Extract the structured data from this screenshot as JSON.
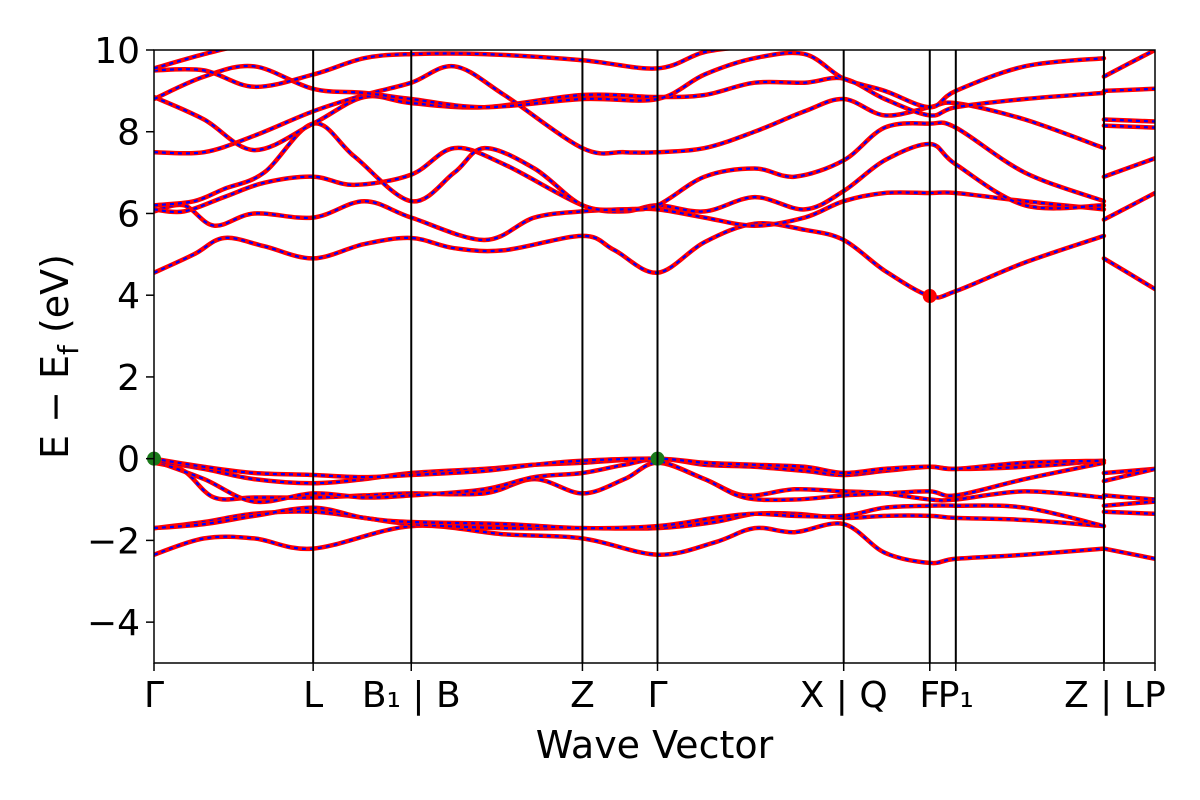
{
  "chart_data": {
    "type": "line",
    "title": "",
    "xlabel": "Wave Vector",
    "ylabel": "E − Ef",
    "ylabel_main": "E − E",
    "ylabel_sub": "f",
    "ylabel_unit": " (eV)",
    "ylim": [
      -5,
      10
    ],
    "yticks": [
      -4,
      -2,
      0,
      2,
      4,
      6,
      8,
      10
    ],
    "ytick_labels": [
      "−4",
      "−2",
      "0",
      "2",
      "4",
      "6",
      "8",
      "10"
    ],
    "xlim": [
      0,
      1
    ],
    "kpoints": [
      {
        "x": 0.0,
        "label": "Γ"
      },
      {
        "x": 0.159,
        "label": "L"
      },
      {
        "x": 0.257,
        "label": "B₁ | B"
      },
      {
        "x": 0.428,
        "label": "Z"
      },
      {
        "x": 0.503,
        "label": "Γ"
      },
      {
        "x": 0.689,
        "label": "X | Q"
      },
      {
        "x": 0.775,
        "label": "F"
      },
      {
        "x": 0.801,
        "label": "P₁"
      },
      {
        "x": 0.949,
        "label": "Z | L"
      },
      {
        "x": 1.0,
        "label": "P"
      }
    ],
    "grid": false,
    "series_colors": {
      "line_a": "#ff0000",
      "line_b": "#0000ff"
    },
    "series_style": "red solid overlaid with blue dashed",
    "markers": [
      {
        "name": "vbm",
        "x": 0.0,
        "y": 0.0,
        "color": "#1a7a1a"
      },
      {
        "name": "vbm",
        "x": 0.503,
        "y": 0.0,
        "color": "#1a7a1a"
      },
      {
        "name": "cbm",
        "x": 0.775,
        "y": 3.98,
        "color": "#ff0000"
      }
    ],
    "bands": [
      [
        [
          0,
          -2.35
        ],
        [
          0.05,
          -1.95
        ],
        [
          0.1,
          -1.95
        ],
        [
          0.159,
          -2.2
        ],
        [
          0.257,
          -1.65
        ],
        [
          0.35,
          -1.85
        ],
        [
          0.428,
          -1.95
        ],
        [
          0.503,
          -2.35
        ],
        [
          0.56,
          -2.05
        ],
        [
          0.6,
          -1.7
        ],
        [
          0.64,
          -1.8
        ],
        [
          0.689,
          -1.6
        ],
        [
          0.73,
          -2.3
        ],
        [
          0.775,
          -2.55
        ],
        [
          0.801,
          -2.45
        ],
        [
          0.87,
          -2.35
        ],
        [
          0.949,
          -2.2
        ]
      ],
      [
        [
          0.949,
          -2.2
        ],
        [
          1.0,
          -2.45
        ]
      ],
      [
        [
          0,
          -1.7
        ],
        [
          0.05,
          -1.55
        ],
        [
          0.1,
          -1.35
        ],
        [
          0.159,
          -1.3
        ],
        [
          0.21,
          -1.45
        ],
        [
          0.257,
          -1.6
        ],
        [
          0.35,
          -1.7
        ],
        [
          0.428,
          -1.7
        ],
        [
          0.503,
          -1.7
        ],
        [
          0.56,
          -1.55
        ],
        [
          0.6,
          -1.35
        ],
        [
          0.64,
          -1.35
        ],
        [
          0.689,
          -1.45
        ],
        [
          0.73,
          -1.4
        ],
        [
          0.775,
          -1.4
        ],
        [
          0.801,
          -1.45
        ],
        [
          0.87,
          -1.5
        ],
        [
          0.949,
          -1.65
        ]
      ],
      [
        [
          0,
          -1.7
        ],
        [
          0.05,
          -1.6
        ],
        [
          0.1,
          -1.4
        ],
        [
          0.159,
          -1.2
        ],
        [
          0.21,
          -1.45
        ],
        [
          0.257,
          -1.55
        ],
        [
          0.35,
          -1.6
        ],
        [
          0.428,
          -1.7
        ],
        [
          0.503,
          -1.65
        ],
        [
          0.56,
          -1.45
        ],
        [
          0.6,
          -1.35
        ],
        [
          0.64,
          -1.4
        ],
        [
          0.689,
          -1.4
        ],
        [
          0.73,
          -1.2
        ],
        [
          0.775,
          -1.15
        ],
        [
          0.801,
          -1.15
        ],
        [
          0.87,
          -1.2
        ],
        [
          0.949,
          -1.65
        ]
      ],
      [
        [
          0,
          -0.1
        ],
        [
          0.03,
          -0.3
        ],
        [
          0.06,
          -0.95
        ],
        [
          0.1,
          -0.95
        ],
        [
          0.159,
          -0.95
        ],
        [
          0.21,
          -0.9
        ],
        [
          0.257,
          -0.85
        ],
        [
          0.33,
          -0.85
        ],
        [
          0.38,
          -0.5
        ],
        [
          0.428,
          -0.85
        ],
        [
          0.47,
          -0.5
        ],
        [
          0.503,
          -0.1
        ],
        [
          0.55,
          -0.5
        ],
        [
          0.59,
          -0.9
        ],
        [
          0.64,
          -0.75
        ],
        [
          0.689,
          -0.8
        ],
        [
          0.73,
          -0.85
        ],
        [
          0.775,
          -1.0
        ],
        [
          0.801,
          -1.0
        ],
        [
          0.87,
          -0.8
        ],
        [
          0.949,
          -0.95
        ]
      ],
      [
        [
          0,
          -0.05
        ],
        [
          0.05,
          -0.5
        ],
        [
          0.1,
          -1.05
        ],
        [
          0.159,
          -0.85
        ],
        [
          0.21,
          -0.95
        ],
        [
          0.257,
          -0.9
        ],
        [
          0.33,
          -0.75
        ],
        [
          0.38,
          -0.45
        ],
        [
          0.428,
          -0.35
        ],
        [
          0.47,
          -0.15
        ],
        [
          0.503,
          -0.05
        ],
        [
          0.55,
          -0.5
        ],
        [
          0.59,
          -0.95
        ],
        [
          0.64,
          -1.0
        ],
        [
          0.689,
          -0.9
        ],
        [
          0.73,
          -0.85
        ],
        [
          0.775,
          -0.8
        ],
        [
          0.801,
          -0.9
        ],
        [
          0.87,
          -0.5
        ],
        [
          0.949,
          -0.1
        ]
      ],
      [
        [
          0,
          -0.05
        ],
        [
          0.05,
          -0.25
        ],
        [
          0.1,
          -0.5
        ],
        [
          0.159,
          -0.6
        ],
        [
          0.21,
          -0.5
        ],
        [
          0.257,
          -0.35
        ],
        [
          0.33,
          -0.25
        ],
        [
          0.38,
          -0.15
        ],
        [
          0.428,
          -0.1
        ],
        [
          0.503,
          0.0
        ],
        [
          0.55,
          -0.15
        ],
        [
          0.6,
          -0.2
        ],
        [
          0.65,
          -0.3
        ],
        [
          0.689,
          -0.4
        ],
        [
          0.73,
          -0.3
        ],
        [
          0.775,
          -0.2
        ],
        [
          0.801,
          -0.25
        ],
        [
          0.87,
          -0.2
        ],
        [
          0.949,
          -0.05
        ]
      ],
      [
        [
          0,
          0.0
        ],
        [
          0.05,
          -0.2
        ],
        [
          0.1,
          -0.35
        ],
        [
          0.159,
          -0.4
        ],
        [
          0.21,
          -0.45
        ],
        [
          0.257,
          -0.4
        ],
        [
          0.33,
          -0.3
        ],
        [
          0.38,
          -0.15
        ],
        [
          0.428,
          -0.05
        ],
        [
          0.503,
          0.0
        ],
        [
          0.55,
          -0.1
        ],
        [
          0.6,
          -0.15
        ],
        [
          0.65,
          -0.2
        ],
        [
          0.689,
          -0.35
        ],
        [
          0.73,
          -0.25
        ],
        [
          0.775,
          -0.2
        ],
        [
          0.801,
          -0.25
        ],
        [
          0.87,
          -0.1
        ],
        [
          0.949,
          -0.05
        ]
      ],
      [
        [
          0.949,
          -0.35
        ],
        [
          1.0,
          -0.25
        ]
      ],
      [
        [
          0.949,
          -0.55
        ],
        [
          1.0,
          -0.25
        ]
      ],
      [
        [
          0.949,
          -0.9
        ],
        [
          1.0,
          -1.0
        ]
      ],
      [
        [
          0.949,
          -1.15
        ],
        [
          1.0,
          -1.05
        ]
      ],
      [
        [
          0.949,
          -1.3
        ],
        [
          1.0,
          -1.35
        ]
      ],
      [
        [
          0,
          4.55
        ],
        [
          0.04,
          5.0
        ],
        [
          0.07,
          5.4
        ],
        [
          0.11,
          5.2
        ],
        [
          0.159,
          4.9
        ],
        [
          0.21,
          5.25
        ],
        [
          0.257,
          5.4
        ],
        [
          0.3,
          5.15
        ],
        [
          0.35,
          5.1
        ],
        [
          0.428,
          5.45
        ],
        [
          0.46,
          5.1
        ],
        [
          0.503,
          4.55
        ],
        [
          0.55,
          5.3
        ],
        [
          0.6,
          5.75
        ],
        [
          0.65,
          5.6
        ],
        [
          0.689,
          5.35
        ],
        [
          0.73,
          4.6
        ],
        [
          0.775,
          3.98
        ],
        [
          0.801,
          4.1
        ],
        [
          0.87,
          4.8
        ],
        [
          0.949,
          5.45
        ]
      ],
      [
        [
          0.949,
          4.9
        ],
        [
          1.0,
          4.15
        ]
      ],
      [
        [
          0,
          6.05
        ],
        [
          0.03,
          6.2
        ],
        [
          0.06,
          5.7
        ],
        [
          0.1,
          6.0
        ],
        [
          0.159,
          5.9
        ],
        [
          0.21,
          6.3
        ],
        [
          0.257,
          5.9
        ],
        [
          0.33,
          5.35
        ],
        [
          0.38,
          5.9
        ],
        [
          0.428,
          6.05
        ],
        [
          0.47,
          6.1
        ],
        [
          0.503,
          6.1
        ],
        [
          0.55,
          5.9
        ],
        [
          0.6,
          5.7
        ],
        [
          0.65,
          5.9
        ],
        [
          0.689,
          6.3
        ],
        [
          0.73,
          6.5
        ],
        [
          0.775,
          6.5
        ],
        [
          0.801,
          6.5
        ],
        [
          0.87,
          6.3
        ],
        [
          0.949,
          6.1
        ]
      ],
      [
        [
          0.949,
          5.85
        ],
        [
          1.0,
          6.5
        ]
      ],
      [
        [
          0,
          6.1
        ],
        [
          0.03,
          6.05
        ],
        [
          0.07,
          6.4
        ],
        [
          0.11,
          6.75
        ],
        [
          0.159,
          6.9
        ],
        [
          0.2,
          6.7
        ],
        [
          0.257,
          6.95
        ],
        [
          0.3,
          7.6
        ],
        [
          0.35,
          7.2
        ],
        [
          0.428,
          6.2
        ],
        [
          0.47,
          6.05
        ],
        [
          0.503,
          6.2
        ],
        [
          0.55,
          6.05
        ],
        [
          0.6,
          6.4
        ],
        [
          0.65,
          6.1
        ],
        [
          0.689,
          6.55
        ],
        [
          0.73,
          7.3
        ],
        [
          0.775,
          7.7
        ],
        [
          0.801,
          7.2
        ],
        [
          0.87,
          6.2
        ],
        [
          0.949,
          6.2
        ]
      ],
      [
        [
          0.949,
          6.9
        ],
        [
          1.0,
          7.35
        ]
      ],
      [
        [
          0,
          6.2
        ],
        [
          0.04,
          6.3
        ],
        [
          0.07,
          6.6
        ],
        [
          0.11,
          7.0
        ],
        [
          0.159,
          8.2
        ],
        [
          0.2,
          7.4
        ],
        [
          0.257,
          6.3
        ],
        [
          0.3,
          7.0
        ],
        [
          0.33,
          7.6
        ],
        [
          0.38,
          7.1
        ],
        [
          0.428,
          6.2
        ],
        [
          0.47,
          6.1
        ],
        [
          0.503,
          6.2
        ],
        [
          0.55,
          6.9
        ],
        [
          0.6,
          7.1
        ],
        [
          0.64,
          6.9
        ],
        [
          0.689,
          7.3
        ],
        [
          0.73,
          8.1
        ],
        [
          0.775,
          8.2
        ],
        [
          0.801,
          8.1
        ],
        [
          0.87,
          7.0
        ],
        [
          0.949,
          6.3
        ]
      ],
      [
        [
          0,
          7.5
        ],
        [
          0.05,
          7.5
        ],
        [
          0.1,
          7.9
        ],
        [
          0.159,
          8.5
        ],
        [
          0.21,
          8.9
        ],
        [
          0.257,
          9.2
        ],
        [
          0.3,
          9.6
        ],
        [
          0.35,
          8.9
        ],
        [
          0.428,
          7.6
        ],
        [
          0.47,
          7.5
        ],
        [
          0.503,
          7.5
        ],
        [
          0.55,
          7.6
        ],
        [
          0.6,
          8.0
        ],
        [
          0.65,
          8.5
        ],
        [
          0.689,
          8.8
        ],
        [
          0.73,
          8.4
        ],
        [
          0.775,
          8.6
        ],
        [
          0.801,
          8.7
        ],
        [
          0.87,
          8.3
        ],
        [
          0.949,
          7.6
        ]
      ],
      [
        [
          0.949,
          8.3
        ],
        [
          1.0,
          8.25
        ]
      ],
      [
        [
          0.949,
          8.15
        ],
        [
          1.0,
          8.1
        ]
      ],
      [
        [
          0,
          8.85
        ],
        [
          0.05,
          8.3
        ],
        [
          0.1,
          7.55
        ],
        [
          0.159,
          8.2
        ],
        [
          0.21,
          8.85
        ],
        [
          0.257,
          8.7
        ],
        [
          0.33,
          8.6
        ],
        [
          0.428,
          8.9
        ],
        [
          0.503,
          8.85
        ],
        [
          0.55,
          8.9
        ],
        [
          0.6,
          9.2
        ],
        [
          0.65,
          9.2
        ],
        [
          0.689,
          9.3
        ],
        [
          0.73,
          8.8
        ],
        [
          0.775,
          8.4
        ],
        [
          0.801,
          8.6
        ],
        [
          0.87,
          8.8
        ],
        [
          0.949,
          8.95
        ]
      ],
      [
        [
          0.949,
          9.0
        ],
        [
          1.0,
          9.05
        ]
      ],
      [
        [
          0,
          8.8
        ],
        [
          0.05,
          9.35
        ],
        [
          0.1,
          9.6
        ],
        [
          0.159,
          9.05
        ],
        [
          0.21,
          8.95
        ],
        [
          0.257,
          8.8
        ],
        [
          0.33,
          8.6
        ],
        [
          0.428,
          8.8
        ],
        [
          0.503,
          8.8
        ],
        [
          0.55,
          9.4
        ],
        [
          0.6,
          9.8
        ],
        [
          0.65,
          9.9
        ],
        [
          0.689,
          9.3
        ],
        [
          0.73,
          9.0
        ],
        [
          0.775,
          8.6
        ],
        [
          0.801,
          9.0
        ],
        [
          0.87,
          9.6
        ],
        [
          0.949,
          9.8
        ]
      ],
      [
        [
          0,
          9.5
        ],
        [
          0.05,
          9.5
        ],
        [
          0.1,
          9.1
        ],
        [
          0.159,
          9.4
        ],
        [
          0.21,
          9.8
        ],
        [
          0.257,
          9.9
        ],
        [
          0.33,
          9.9
        ],
        [
          0.428,
          9.75
        ],
        [
          0.503,
          9.55
        ],
        [
          0.55,
          9.95
        ],
        [
          0.6,
          10.1
        ]
      ],
      [
        [
          0,
          9.55
        ],
        [
          0.05,
          9.9
        ],
        [
          0.1,
          10.2
        ]
      ],
      [
        [
          0.949,
          9.35
        ],
        [
          1.0,
          10.0
        ]
      ]
    ]
  }
}
